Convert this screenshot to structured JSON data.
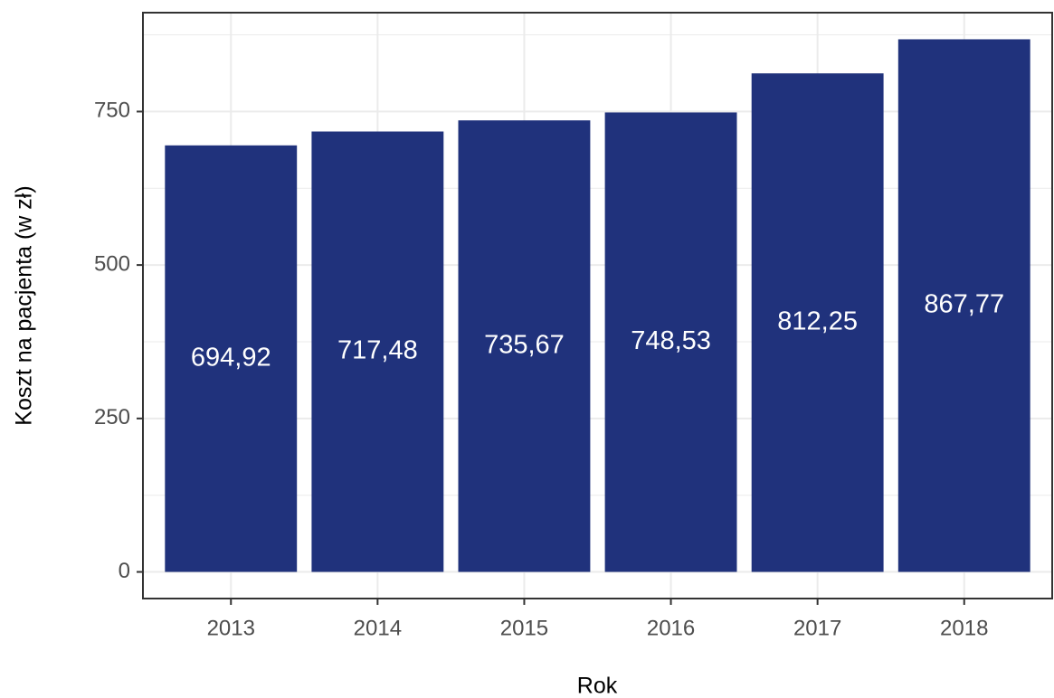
{
  "chart_data": {
    "type": "bar",
    "x_label": "Rok",
    "y_label": "Koszt na pacjenta (w zł)",
    "categories": [
      "2013",
      "2014",
      "2015",
      "2016",
      "2017",
      "2018"
    ],
    "values": [
      694.92,
      717.48,
      735.67,
      748.53,
      812.25,
      867.77
    ],
    "value_labels": [
      "694,92",
      "717,48",
      "735,67",
      "748,53",
      "812,25",
      "867,77"
    ],
    "color": "#20327c",
    "ylim": [
      -43.39,
      911.16
    ],
    "yticks": [
      0,
      250,
      500,
      750
    ],
    "grid": true
  }
}
